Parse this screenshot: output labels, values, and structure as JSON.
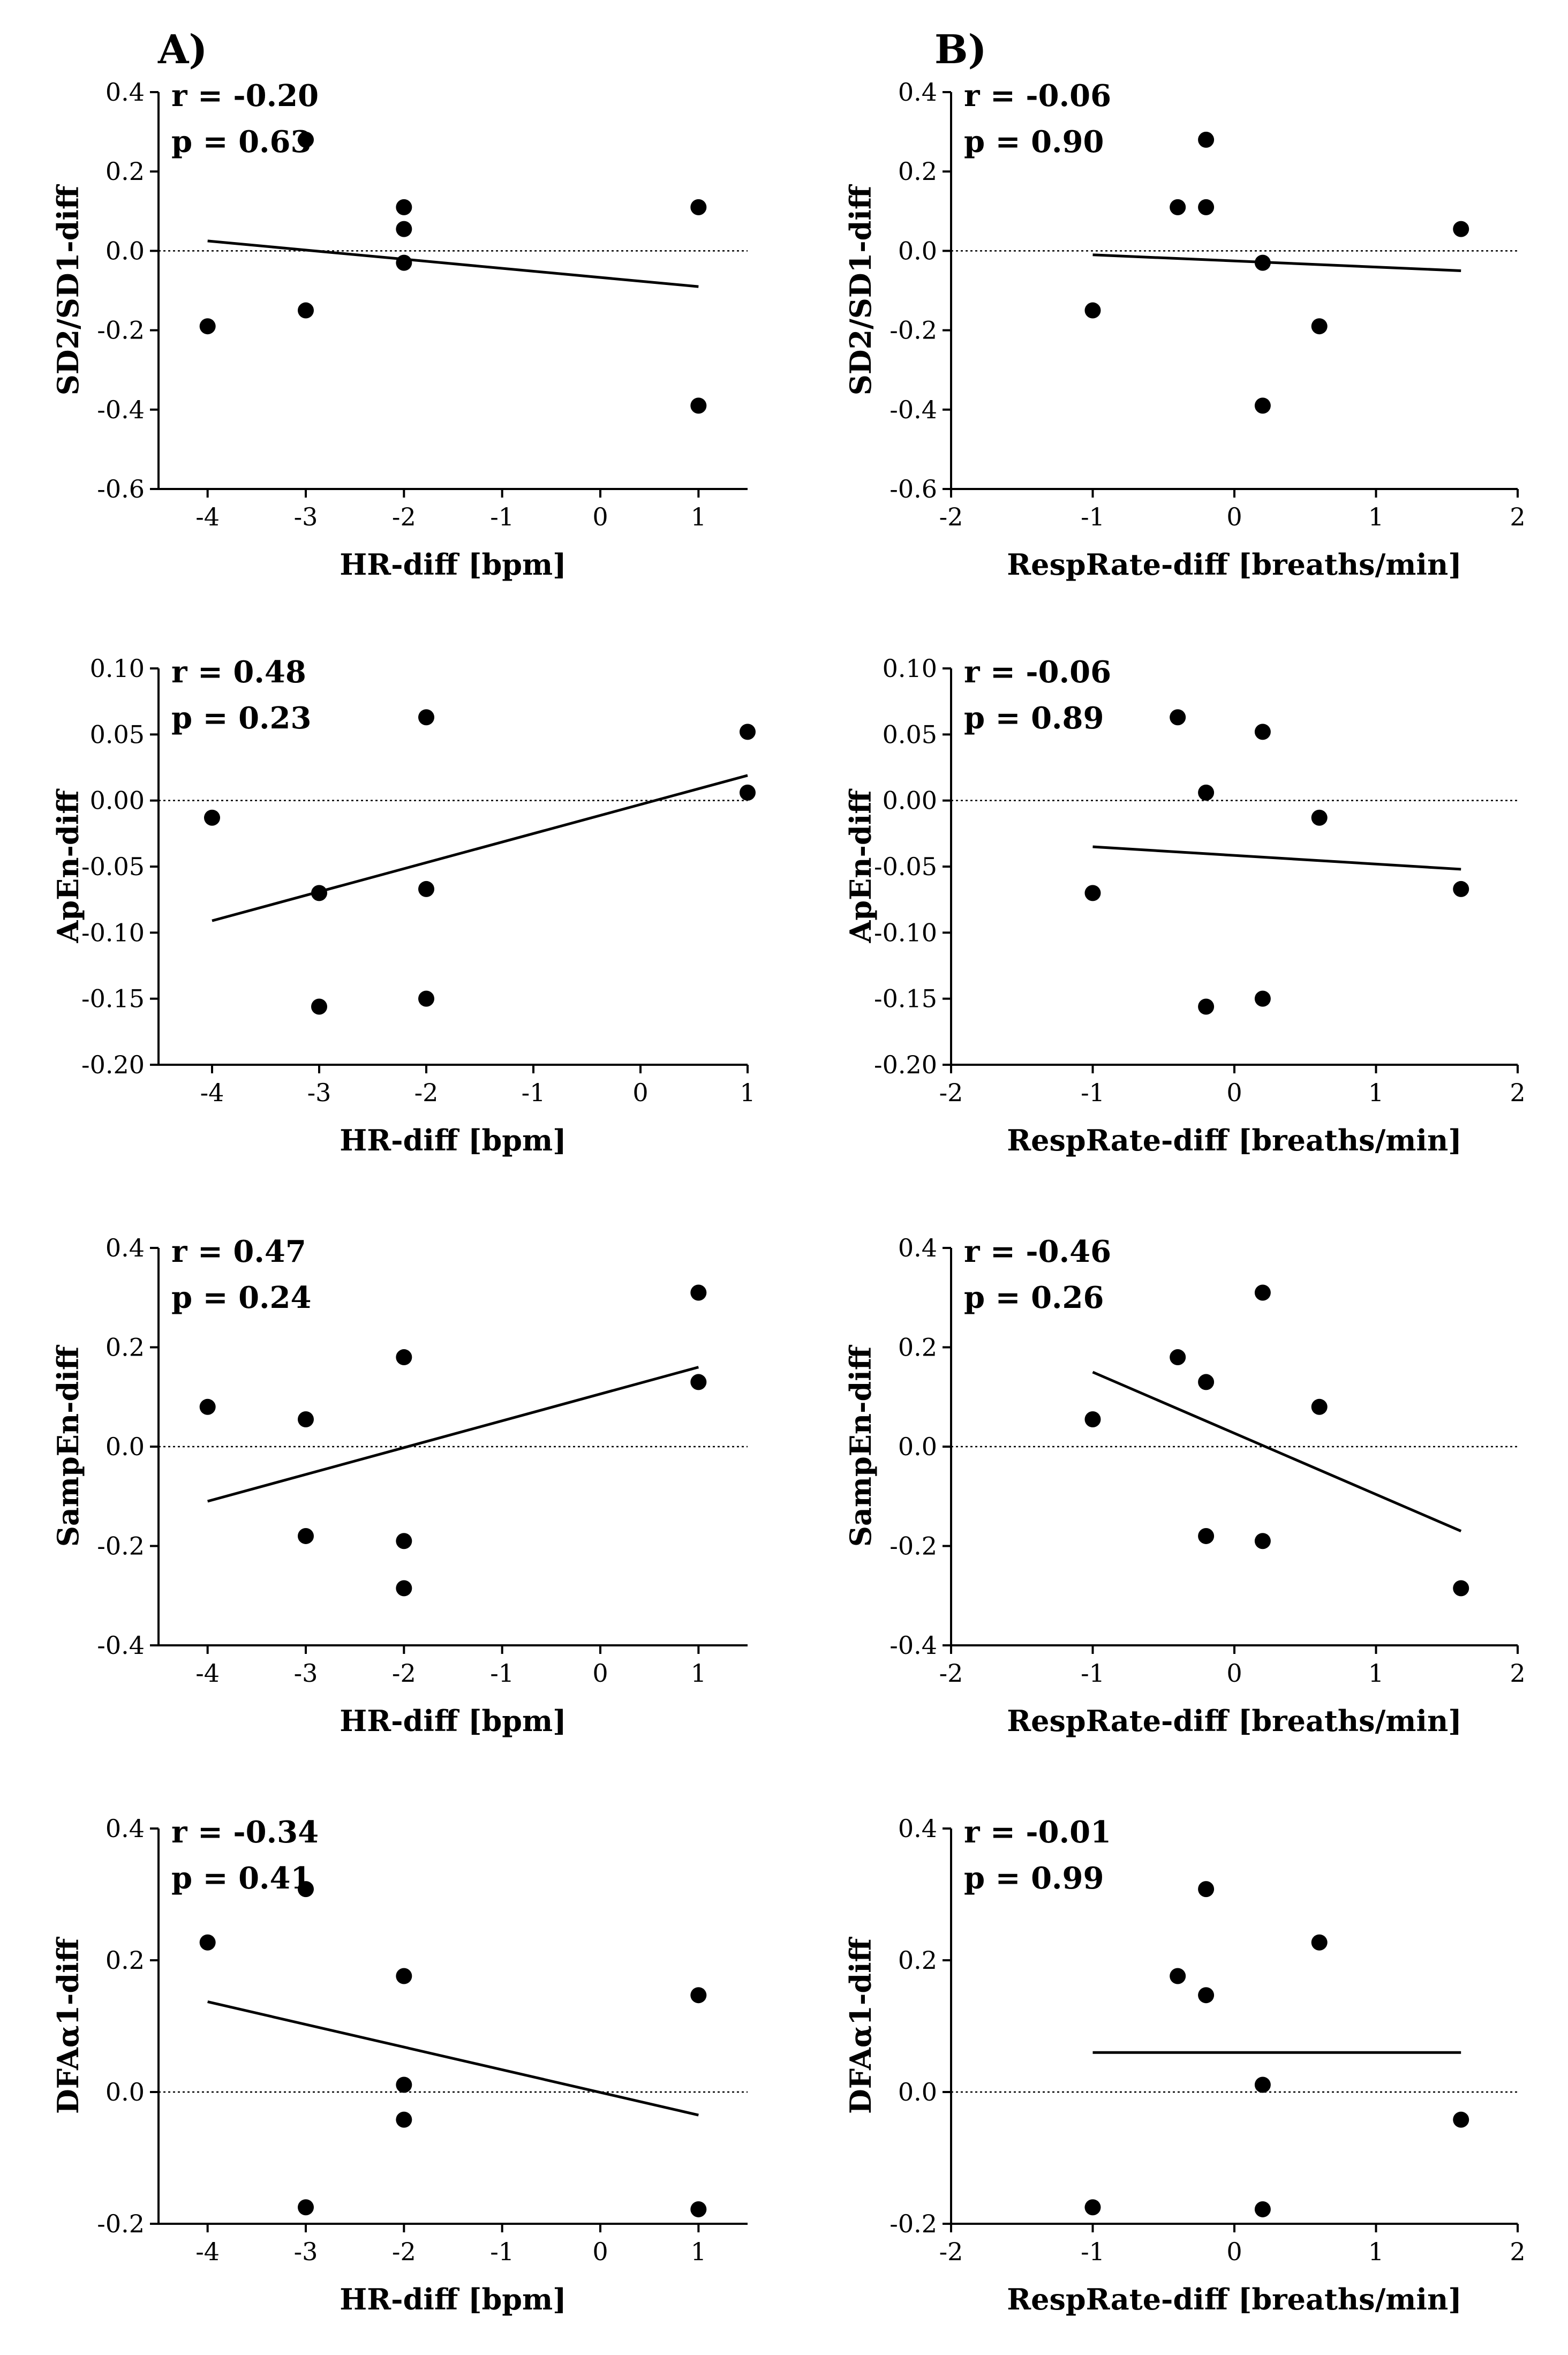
{
  "panel_labels": [
    "A)",
    "B)"
  ],
  "chart_data": [
    {
      "type": "scatter",
      "column": "A",
      "row": 0,
      "ylabel": "SD2/SD1-diff",
      "xlabel": "HR-diff [bpm]",
      "xlim": [
        -4.5,
        1.5
      ],
      "xticks": [
        -4,
        -3,
        -2,
        -1,
        0,
        1
      ],
      "ylim": [
        -0.6,
        0.4
      ],
      "yticks": [
        -0.6,
        -0.4,
        -0.2,
        0.0,
        0.2,
        0.4
      ],
      "ydec": 1,
      "r_text": "r = -0.20",
      "p_text": "p = 0.63",
      "points": [
        [
          -4,
          -0.19
        ],
        [
          -3,
          0.28
        ],
        [
          -3,
          -0.15
        ],
        [
          -2,
          0.11
        ],
        [
          -2,
          0.055
        ],
        [
          -2,
          -0.03
        ],
        [
          1,
          0.11
        ],
        [
          1,
          -0.39
        ]
      ],
      "fit": [
        [
          -4,
          0.025
        ],
        [
          1,
          -0.09
        ]
      ]
    },
    {
      "type": "scatter",
      "column": "B",
      "row": 0,
      "ylabel": "SD2/SD1-diff",
      "xlabel": "RespRate-diff [breaths/min]",
      "xlim": [
        -2,
        2
      ],
      "xticks": [
        -2,
        -1,
        0,
        1,
        2
      ],
      "ylim": [
        -0.6,
        0.4
      ],
      "yticks": [
        -0.6,
        -0.4,
        -0.2,
        0.0,
        0.2,
        0.4
      ],
      "ydec": 1,
      "r_text": "r = -0.06",
      "p_text": "p = 0.90",
      "points": [
        [
          -1,
          -0.15
        ],
        [
          -0.4,
          0.11
        ],
        [
          -0.2,
          0.28
        ],
        [
          -0.2,
          0.11
        ],
        [
          0.2,
          -0.03
        ],
        [
          0.2,
          -0.39
        ],
        [
          0.6,
          -0.19
        ],
        [
          1.6,
          0.055
        ]
      ],
      "fit": [
        [
          -1,
          -0.01
        ],
        [
          1.6,
          -0.05
        ]
      ]
    },
    {
      "type": "scatter",
      "column": "A",
      "row": 1,
      "ylabel": "ApEn-diff",
      "xlabel": "HR-diff [bpm]",
      "xlim": [
        -4.5,
        1
      ],
      "xticks": [
        -4,
        -3,
        -2,
        -1,
        0,
        1
      ],
      "ylim": [
        -0.2,
        0.1
      ],
      "yticks": [
        -0.2,
        -0.15,
        -0.1,
        -0.05,
        0.0,
        0.05,
        0.1
      ],
      "ydec": 2,
      "r_text": "r = 0.48",
      "p_text": "p = 0.23",
      "points": [
        [
          -4,
          -0.013
        ],
        [
          -3,
          -0.07
        ],
        [
          -3,
          -0.156
        ],
        [
          -2,
          0.063
        ],
        [
          -2,
          -0.067
        ],
        [
          -2,
          -0.15
        ],
        [
          1,
          0.052
        ],
        [
          1,
          0.006
        ]
      ],
      "fit": [
        [
          -4,
          -0.091
        ],
        [
          1,
          0.019
        ]
      ]
    },
    {
      "type": "scatter",
      "column": "B",
      "row": 1,
      "ylabel": "ApEn-diff",
      "xlabel": "RespRate-diff [breaths/min]",
      "xlim": [
        -2,
        2
      ],
      "xticks": [
        -2,
        -1,
        0,
        1,
        2
      ],
      "ylim": [
        -0.2,
        0.1
      ],
      "yticks": [
        -0.2,
        -0.15,
        -0.1,
        -0.05,
        0.0,
        0.05,
        0.1
      ],
      "ydec": 2,
      "r_text": "r = -0.06",
      "p_text": "p = 0.89",
      "points": [
        [
          -1,
          -0.07
        ],
        [
          -0.4,
          0.063
        ],
        [
          -0.2,
          0.006
        ],
        [
          -0.2,
          -0.156
        ],
        [
          0.2,
          0.052
        ],
        [
          0.2,
          -0.15
        ],
        [
          0.6,
          -0.013
        ],
        [
          1.6,
          -0.067
        ]
      ],
      "fit": [
        [
          -1,
          -0.035
        ],
        [
          1.6,
          -0.052
        ]
      ]
    },
    {
      "type": "scatter",
      "column": "A",
      "row": 2,
      "ylabel": "SampEn-diff",
      "xlabel": "HR-diff [bpm]",
      "xlim": [
        -4.5,
        1.5
      ],
      "xticks": [
        -4,
        -3,
        -2,
        -1,
        0,
        1
      ],
      "ylim": [
        -0.4,
        0.4
      ],
      "yticks": [
        -0.4,
        -0.2,
        0.0,
        0.2,
        0.4
      ],
      "ydec": 1,
      "r_text": "r = 0.47",
      "p_text": "p = 0.24",
      "points": [
        [
          -4,
          0.08
        ],
        [
          -3,
          0.055
        ],
        [
          -3,
          -0.18
        ],
        [
          -2,
          0.18
        ],
        [
          -2,
          -0.19
        ],
        [
          -2,
          -0.285
        ],
        [
          1,
          0.31
        ],
        [
          1,
          0.13
        ]
      ],
      "fit": [
        [
          -4,
          -0.11
        ],
        [
          1,
          0.16
        ]
      ]
    },
    {
      "type": "scatter",
      "column": "B",
      "row": 2,
      "ylabel": "SampEn-diff",
      "xlabel": "RespRate-diff [breaths/min]",
      "xlim": [
        -2,
        2
      ],
      "xticks": [
        -2,
        -1,
        0,
        1,
        2
      ],
      "ylim": [
        -0.4,
        0.4
      ],
      "yticks": [
        -0.4,
        -0.2,
        0.0,
        0.2,
        0.4
      ],
      "ydec": 1,
      "r_text": "r = -0.46",
      "p_text": "p = 0.26",
      "points": [
        [
          -1,
          0.055
        ],
        [
          -0.4,
          0.18
        ],
        [
          -0.2,
          0.13
        ],
        [
          -0.2,
          -0.18
        ],
        [
          0.2,
          0.31
        ],
        [
          0.2,
          -0.19
        ],
        [
          0.6,
          0.08
        ],
        [
          1.6,
          -0.285
        ]
      ],
      "fit": [
        [
          -1,
          0.15
        ],
        [
          1.6,
          -0.17
        ]
      ]
    },
    {
      "type": "scatter",
      "column": "A",
      "row": 3,
      "ylabel": "DFAα1-diff",
      "xlabel": "HR-diff [bpm]",
      "xlim": [
        -4.5,
        1.5
      ],
      "xticks": [
        -4,
        -3,
        -2,
        -1,
        0,
        1
      ],
      "ylim": [
        -0.2,
        0.4
      ],
      "yticks": [
        -0.2,
        0.0,
        0.2,
        0.4
      ],
      "ydec": 1,
      "r_text": "r = -0.34",
      "p_text": "p = 0.41",
      "points": [
        [
          -4,
          0.227
        ],
        [
          -3,
          0.308
        ],
        [
          -3,
          -0.175
        ],
        [
          -2,
          0.176
        ],
        [
          -2,
          0.011
        ],
        [
          -2,
          -0.042
        ],
        [
          1,
          0.147
        ],
        [
          1,
          -0.178
        ]
      ],
      "fit": [
        [
          -4,
          0.137
        ],
        [
          1,
          -0.035
        ]
      ]
    },
    {
      "type": "scatter",
      "column": "B",
      "row": 3,
      "ylabel": "DFAα1-diff",
      "xlabel": "RespRate-diff [breaths/min]",
      "xlim": [
        -2,
        2
      ],
      "xticks": [
        -2,
        -1,
        0,
        1,
        2
      ],
      "ylim": [
        -0.2,
        0.4
      ],
      "yticks": [
        -0.2,
        0.0,
        0.2,
        0.4
      ],
      "ydec": 1,
      "r_text": "r = -0.01",
      "p_text": "p = 0.99",
      "points": [
        [
          -1,
          -0.175
        ],
        [
          -0.4,
          0.176
        ],
        [
          -0.2,
          0.308
        ],
        [
          -0.2,
          0.147
        ],
        [
          0.2,
          0.011
        ],
        [
          0.2,
          -0.178
        ],
        [
          0.6,
          0.227
        ],
        [
          1.6,
          -0.042
        ]
      ],
      "fit": [
        [
          -1,
          0.06
        ],
        [
          1.6,
          0.06
        ]
      ]
    }
  ]
}
